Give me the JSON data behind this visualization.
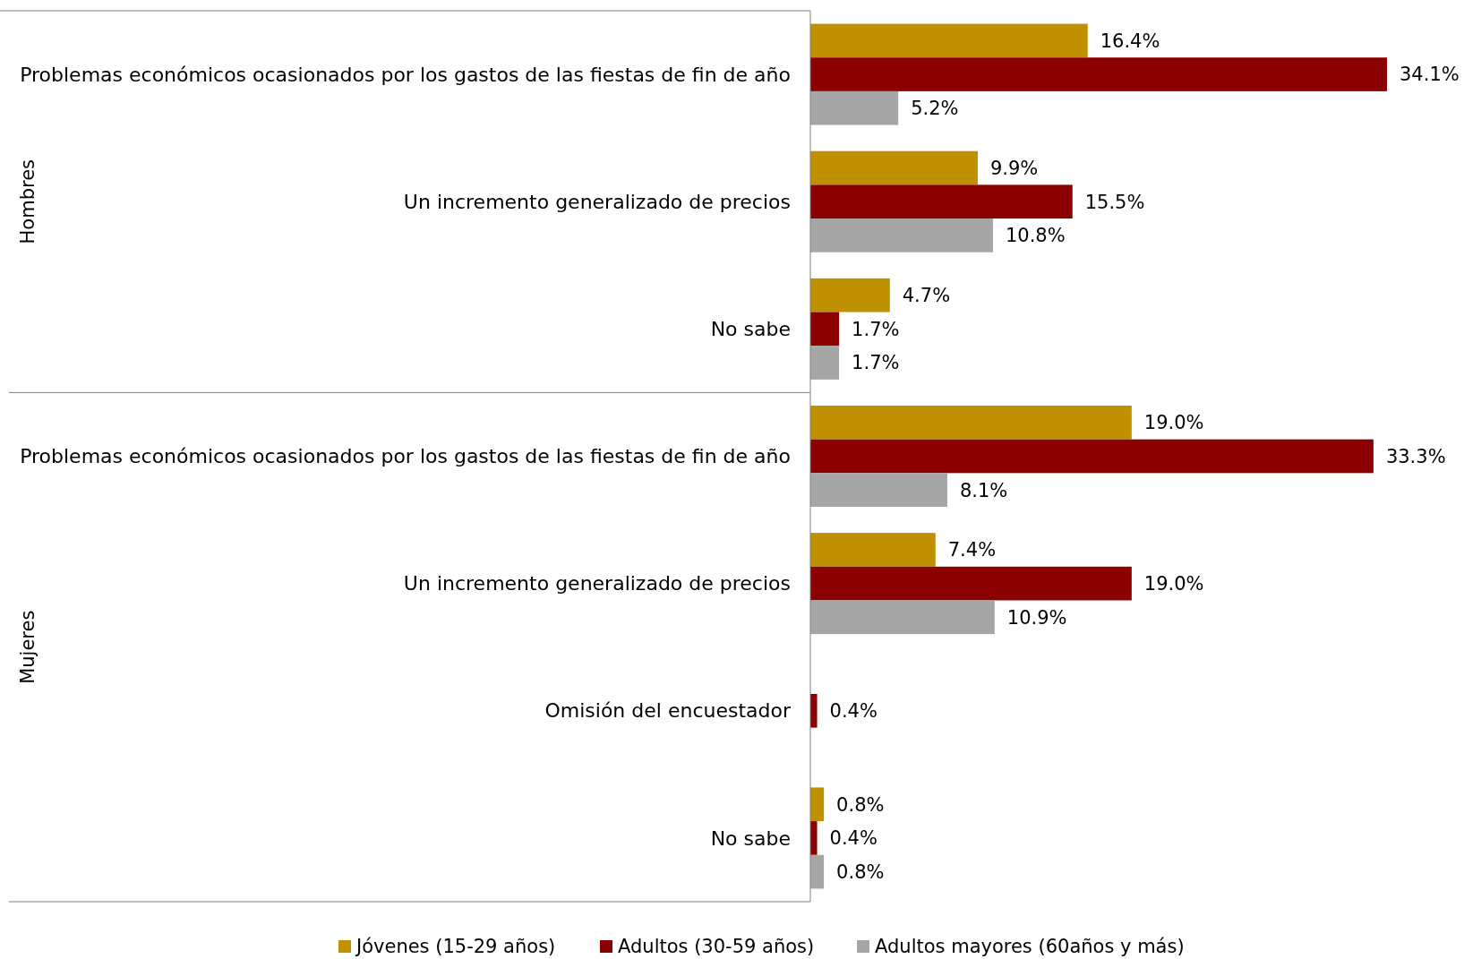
{
  "chart_data": {
    "type": "bar",
    "orientation": "horizontal",
    "categories": [
      "Problemas económicos ocasionados por los gastos de las fiestas de fin de año",
      "Un incremento generalizado de precios",
      "No sabe",
      "Problemas económicos ocasionados por los gastos de las fiestas de fin de año",
      "Un incremento generalizado de precios",
      "Omisión del encuestador",
      "No sabe"
    ],
    "series": [
      {
        "name": "Jóvenes (15-29 años)",
        "color": "#bf9000",
        "values": [
          16.4,
          9.9,
          4.7,
          19.0,
          7.4,
          null,
          0.8
        ],
        "value_labels": [
          "16.4%",
          "9.9%",
          "4.7%",
          "19.0%",
          "7.4%",
          null,
          "0.8%"
        ]
      },
      {
        "name": "Adultos (30-59 años)",
        "color": "#8b0000",
        "values": [
          34.1,
          15.5,
          1.7,
          33.3,
          19.0,
          0.4,
          0.4
        ],
        "value_labels": [
          "34.1%",
          "15.5%",
          "1.7%",
          "33.3%",
          "19.0%",
          "0.4%",
          "0.4%"
        ]
      },
      {
        "name": "Adultos mayores (60años y más)",
        "color": "#a6a6a6",
        "values": [
          5.2,
          10.8,
          1.7,
          8.1,
          10.9,
          null,
          0.8
        ],
        "value_labels": [
          "5.2%",
          "10.8%",
          "1.7%",
          "8.1%",
          "10.9%",
          null,
          "0.8%"
        ]
      }
    ],
    "legend": "bottom",
    "annotations": [
      "Hombres",
      "Mujeres"
    ]
  }
}
